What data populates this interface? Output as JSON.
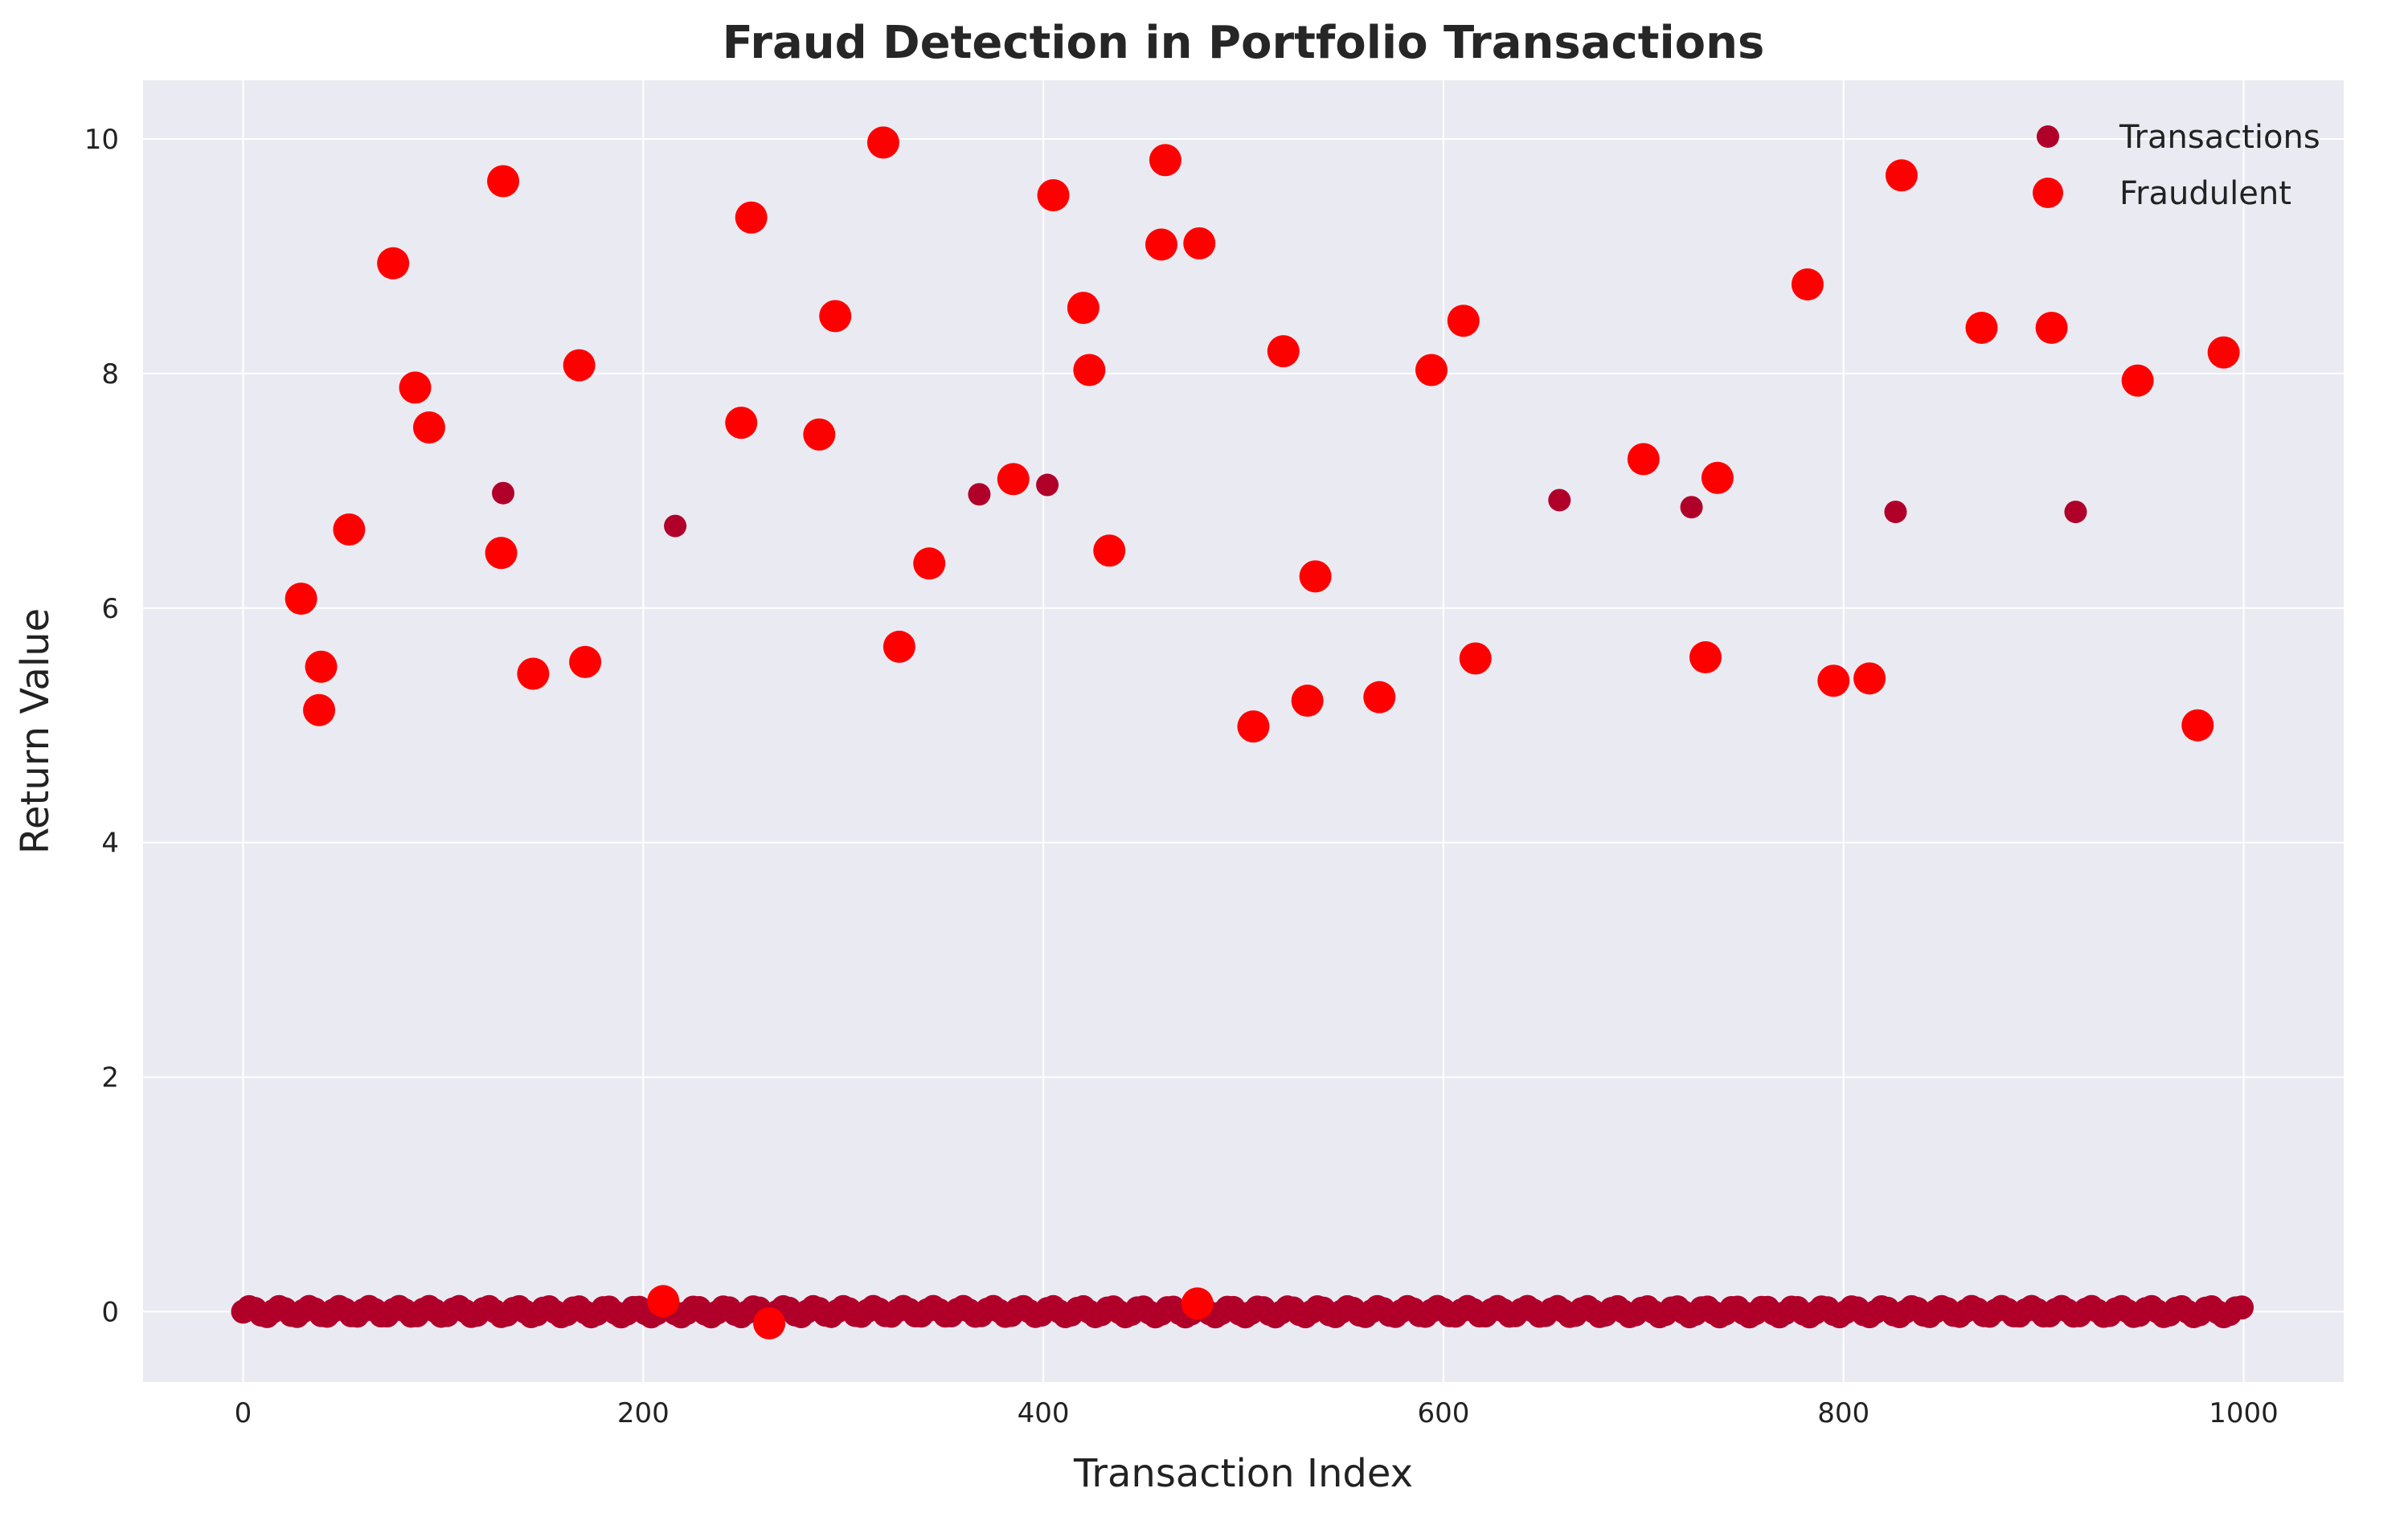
{
  "chart_data": {
    "type": "scatter",
    "title": "Fraud Detection in Portfolio Transactions",
    "xlabel": "Transaction Index",
    "ylabel": "Return Value",
    "xlim": [
      -50,
      1050
    ],
    "ylim": [
      -0.6,
      10.5
    ],
    "xticks": [
      0,
      200,
      400,
      600,
      800,
      1000
    ],
    "yticks": [
      0,
      2,
      4,
      6,
      8,
      10
    ],
    "grid": true,
    "legend": "top-right",
    "colors": {
      "background": "#eaeaf2",
      "transactions": "#b0002a",
      "fraudulent": "#ff0000"
    },
    "series": [
      {
        "name": "Transactions",
        "color": "#b0002a",
        "baseline_range": {
          "x_from": 0,
          "x_to": 999,
          "x_step": 3,
          "y_approx": 0.0,
          "y_spread": 0.04
        },
        "points": [
          [
            130,
            6.98
          ],
          [
            216,
            6.7
          ],
          [
            368,
            6.97
          ],
          [
            402,
            7.05
          ],
          [
            658,
            6.92
          ],
          [
            724,
            6.86
          ],
          [
            826,
            6.82
          ],
          [
            916,
            6.82
          ]
        ]
      },
      {
        "name": "Fraudulent",
        "color": "#ff0000",
        "points": [
          [
            29,
            6.08
          ],
          [
            38,
            5.13
          ],
          [
            39,
            5.5
          ],
          [
            53,
            6.67
          ],
          [
            75,
            8.94
          ],
          [
            86,
            7.88
          ],
          [
            93,
            7.54
          ],
          [
            129,
            6.47
          ],
          [
            130,
            9.64
          ],
          [
            145,
            5.44
          ],
          [
            168,
            8.07
          ],
          [
            171,
            5.54
          ],
          [
            210,
            0.09
          ],
          [
            249,
            7.58
          ],
          [
            254,
            9.33
          ],
          [
            263,
            -0.1
          ],
          [
            288,
            7.48
          ],
          [
            296,
            8.49
          ],
          [
            320,
            9.97
          ],
          [
            328,
            5.67
          ],
          [
            343,
            6.38
          ],
          [
            385,
            7.1
          ],
          [
            405,
            9.52
          ],
          [
            420,
            8.56
          ],
          [
            423,
            8.03
          ],
          [
            433,
            6.49
          ],
          [
            459,
            9.1
          ],
          [
            461,
            9.82
          ],
          [
            477,
            0.07
          ],
          [
            478,
            9.11
          ],
          [
            505,
            4.99
          ],
          [
            520,
            8.19
          ],
          [
            532,
            5.21
          ],
          [
            536,
            6.27
          ],
          [
            568,
            5.24
          ],
          [
            594,
            8.03
          ],
          [
            610,
            8.45
          ],
          [
            616,
            5.57
          ],
          [
            700,
            7.27
          ],
          [
            731,
            5.58
          ],
          [
            737,
            7.11
          ],
          [
            782,
            8.76
          ],
          [
            795,
            5.38
          ],
          [
            813,
            5.4
          ],
          [
            829,
            9.69
          ],
          [
            869,
            8.39
          ],
          [
            904,
            8.39
          ],
          [
            947,
            7.94
          ],
          [
            977,
            5.0
          ],
          [
            990,
            8.18
          ]
        ]
      }
    ]
  }
}
